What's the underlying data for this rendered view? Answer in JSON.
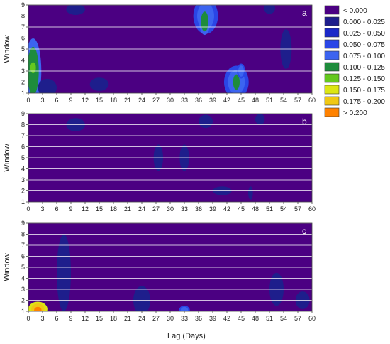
{
  "chart_data": {
    "type": "heatmap",
    "xlabel": "Lag (Days)",
    "ylabel": "Window",
    "x_ticks": [
      0,
      3,
      6,
      9,
      12,
      15,
      18,
      21,
      24,
      27,
      30,
      33,
      36,
      39,
      42,
      45,
      48,
      51,
      54,
      57,
      60
    ],
    "y_ticks": [
      1,
      2,
      3,
      4,
      5,
      6,
      7,
      8,
      9
    ],
    "xlim": [
      0,
      60
    ],
    "ylim": [
      1,
      9
    ],
    "grid": "horizontal lines at each window",
    "legend": {
      "placement": "right",
      "entries": [
        {
          "label": "< 0.000",
          "color": "#4B0082"
        },
        {
          "label": "0.000 - 0.025",
          "color": "#1E1E8C"
        },
        {
          "label": "0.025 - 0.050",
          "color": "#1A28C8"
        },
        {
          "label": "0.050 - 0.075",
          "color": "#2A46E6"
        },
        {
          "label": "0.075 - 0.100",
          "color": "#3C64F0"
        },
        {
          "label": "0.100 - 0.125",
          "color": "#1E8C3C"
        },
        {
          "label": "0.125 - 0.150",
          "color": "#64C81E"
        },
        {
          "label": "0.150 - 0.175",
          "color": "#DCE614"
        },
        {
          "label": "0.175 - 0.200",
          "color": "#F0C814"
        },
        {
          "label": "> 0.200",
          "color": "#FF8200"
        }
      ]
    },
    "panels": [
      {
        "label": "a",
        "regions": [
          {
            "x": 1,
            "y": 3,
            "rx": 1.2,
            "ry": 2.2,
            "level": 6
          },
          {
            "x": 1,
            "y": 3.3,
            "rx": 0.6,
            "ry": 0.5,
            "level": 7
          },
          {
            "x": 37.5,
            "y": 8,
            "rx": 1.8,
            "ry": 1.2,
            "level": 5
          },
          {
            "x": 37.3,
            "y": 7.5,
            "rx": 0.8,
            "ry": 0.9,
            "level": 6
          },
          {
            "x": 44,
            "y": 2,
            "rx": 1.8,
            "ry": 1.1,
            "level": 5
          },
          {
            "x": 44,
            "y": 2,
            "rx": 0.7,
            "ry": 0.7,
            "level": 6
          },
          {
            "x": 45,
            "y": 3,
            "rx": 0.6,
            "ry": 0.5,
            "level": 5
          },
          {
            "x": 10,
            "y": 8.6,
            "rx": 2,
            "ry": 0.5,
            "level": 2
          },
          {
            "x": 15,
            "y": 1.8,
            "rx": 2,
            "ry": 0.6,
            "level": 2
          },
          {
            "x": 4,
            "y": 1.5,
            "rx": 2,
            "ry": 0.8,
            "level": 2
          },
          {
            "x": 54.5,
            "y": 5,
            "rx": 1.2,
            "ry": 1.8,
            "level": 2
          },
          {
            "x": 51,
            "y": 8.7,
            "rx": 1.2,
            "ry": 0.5,
            "level": 2
          }
        ]
      },
      {
        "label": "b",
        "regions": [
          {
            "x": 10,
            "y": 8,
            "rx": 2,
            "ry": 0.6,
            "level": 2
          },
          {
            "x": 37.5,
            "y": 8.3,
            "rx": 1.5,
            "ry": 0.6,
            "level": 2
          },
          {
            "x": 41,
            "y": 2,
            "rx": 2,
            "ry": 0.4,
            "level": 2
          },
          {
            "x": 47,
            "y": 1.8,
            "rx": 0.5,
            "ry": 0.6,
            "level": 2
          },
          {
            "x": 27.5,
            "y": 5,
            "rx": 1,
            "ry": 1.2,
            "level": 2
          },
          {
            "x": 33,
            "y": 5,
            "rx": 1,
            "ry": 1.2,
            "level": 2
          },
          {
            "x": 49,
            "y": 8.5,
            "rx": 1,
            "ry": 0.5,
            "level": 2
          }
        ]
      },
      {
        "label": "c",
        "regions": [
          {
            "x": 2,
            "y": 1.2,
            "rx": 1.4,
            "ry": 0.5,
            "level": 9
          },
          {
            "x": 2,
            "y": 1.1,
            "rx": 0.8,
            "ry": 0.3,
            "level": 10
          },
          {
            "x": 33,
            "y": 1.1,
            "rx": 0.8,
            "ry": 0.3,
            "level": 5
          },
          {
            "x": 7.5,
            "y": 4.5,
            "rx": 1.5,
            "ry": 3.5,
            "level": 2
          },
          {
            "x": 24,
            "y": 2,
            "rx": 1.8,
            "ry": 1.3,
            "level": 2
          },
          {
            "x": 52.5,
            "y": 3,
            "rx": 1.5,
            "ry": 1.5,
            "level": 2
          },
          {
            "x": 58,
            "y": 2,
            "rx": 1.5,
            "ry": 0.8,
            "level": 2
          }
        ]
      }
    ]
  }
}
